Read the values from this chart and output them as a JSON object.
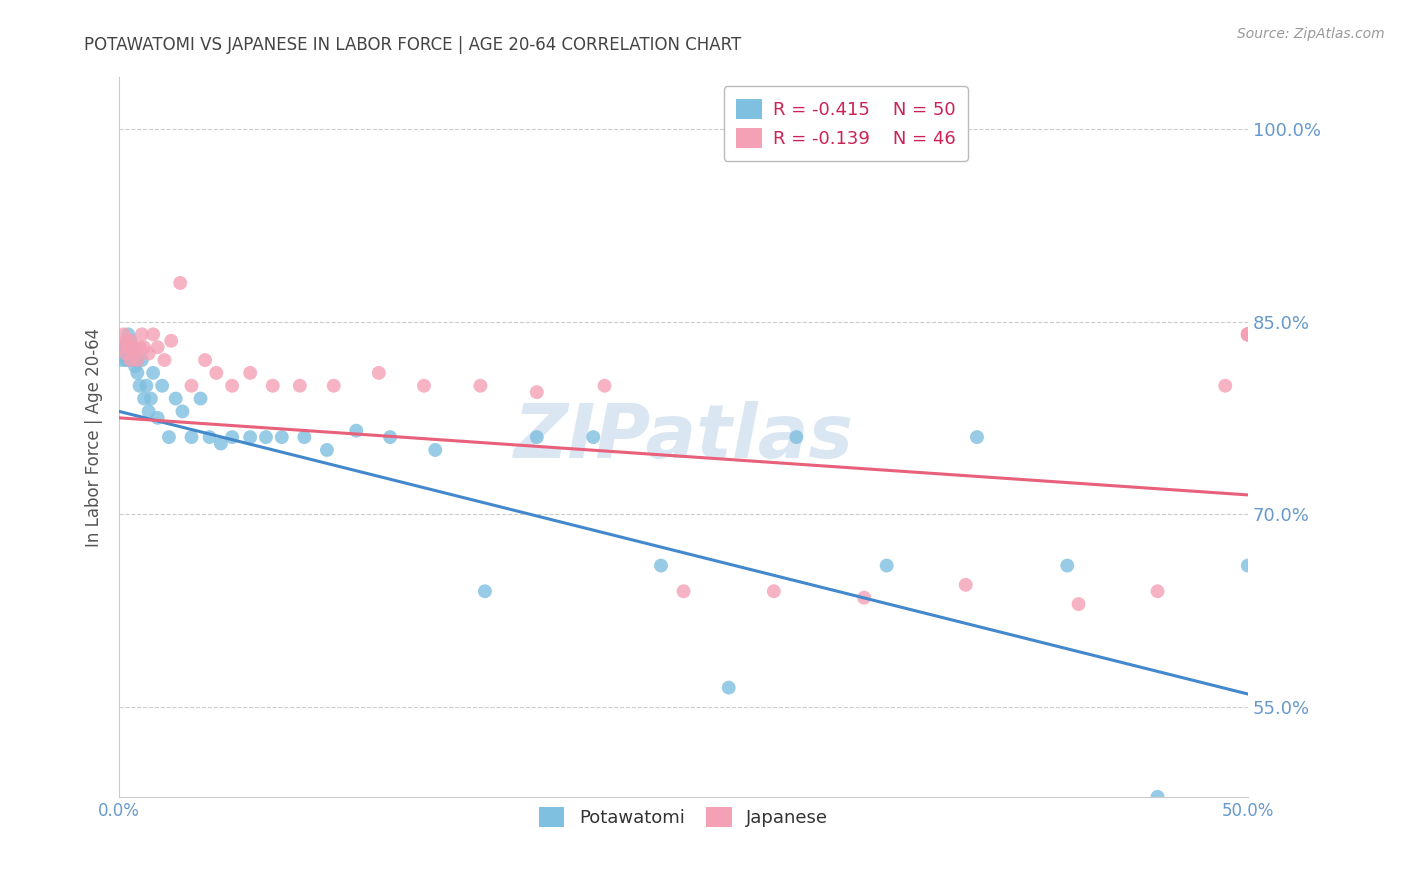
{
  "title": "POTAWATOMI VS JAPANESE IN LABOR FORCE | AGE 20-64 CORRELATION CHART",
  "source": "Source: ZipAtlas.com",
  "ylabel": "In Labor Force | Age 20-64",
  "xlim": [
    0.0,
    0.5
  ],
  "ylim": [
    0.48,
    1.04
  ],
  "yticks": [
    0.55,
    0.7,
    0.85,
    1.0
  ],
  "ytick_labels": [
    "55.0%",
    "70.0%",
    "85.0%",
    "100.0%"
  ],
  "xticks": [
    0.0,
    0.1,
    0.2,
    0.3,
    0.4,
    0.5
  ],
  "xtick_labels": [
    "0.0%",
    "",
    "",
    "",
    "",
    "50.0%"
  ],
  "color_blue": "#7fbfdf",
  "color_pink": "#f4a0b5",
  "color_blue_line": "#4488cc",
  "color_pink_line": "#e8607a",
  "color_axis_blue": "#6699cc",
  "color_grid": "#cccccc",
  "color_title": "#444444",
  "color_source": "#999999",
  "watermark": "ZIPatlas",
  "potawatomi_x": [
    0.001,
    0.002,
    0.003,
    0.003,
    0.004,
    0.004,
    0.005,
    0.005,
    0.006,
    0.006,
    0.007,
    0.007,
    0.008,
    0.008,
    0.009,
    0.01,
    0.011,
    0.012,
    0.013,
    0.014,
    0.015,
    0.017,
    0.019,
    0.022,
    0.025,
    0.028,
    0.032,
    0.036,
    0.04,
    0.045,
    0.05,
    0.058,
    0.065,
    0.072,
    0.082,
    0.092,
    0.105,
    0.12,
    0.14,
    0.162,
    0.185,
    0.21,
    0.24,
    0.27,
    0.3,
    0.34,
    0.38,
    0.42,
    0.46,
    0.5
  ],
  "potawatomi_y": [
    0.82,
    0.83,
    0.83,
    0.82,
    0.84,
    0.82,
    0.835,
    0.825,
    0.83,
    0.82,
    0.825,
    0.815,
    0.82,
    0.81,
    0.8,
    0.82,
    0.79,
    0.8,
    0.78,
    0.79,
    0.81,
    0.775,
    0.8,
    0.76,
    0.79,
    0.78,
    0.76,
    0.79,
    0.76,
    0.755,
    0.76,
    0.76,
    0.76,
    0.76,
    0.76,
    0.75,
    0.765,
    0.76,
    0.75,
    0.64,
    0.76,
    0.76,
    0.66,
    0.565,
    0.76,
    0.66,
    0.76,
    0.66,
    0.48,
    0.66
  ],
  "japanese_x": [
    0.001,
    0.002,
    0.003,
    0.003,
    0.004,
    0.005,
    0.005,
    0.006,
    0.007,
    0.008,
    0.009,
    0.01,
    0.011,
    0.013,
    0.015,
    0.017,
    0.02,
    0.023,
    0.027,
    0.032,
    0.038,
    0.043,
    0.05,
    0.058,
    0.068,
    0.08,
    0.095,
    0.115,
    0.135,
    0.16,
    0.185,
    0.215,
    0.25,
    0.29,
    0.33,
    0.375,
    0.425,
    0.46,
    0.49,
    0.5,
    0.5,
    0.5,
    0.5,
    0.5,
    0.5,
    0.5
  ],
  "japanese_y": [
    0.83,
    0.84,
    0.835,
    0.825,
    0.83,
    0.835,
    0.82,
    0.83,
    0.825,
    0.82,
    0.83,
    0.84,
    0.83,
    0.825,
    0.84,
    0.83,
    0.82,
    0.835,
    0.88,
    0.8,
    0.82,
    0.81,
    0.8,
    0.81,
    0.8,
    0.8,
    0.8,
    0.81,
    0.8,
    0.8,
    0.795,
    0.8,
    0.64,
    0.64,
    0.635,
    0.645,
    0.63,
    0.64,
    0.8,
    0.84,
    0.84,
    0.84,
    0.84,
    0.84,
    0.84,
    0.84
  ],
  "blue_line_x": [
    0.0,
    0.5
  ],
  "blue_line_y": [
    0.78,
    0.56
  ],
  "pink_line_x": [
    0.0,
    0.5
  ],
  "pink_line_y": [
    0.775,
    0.715
  ]
}
